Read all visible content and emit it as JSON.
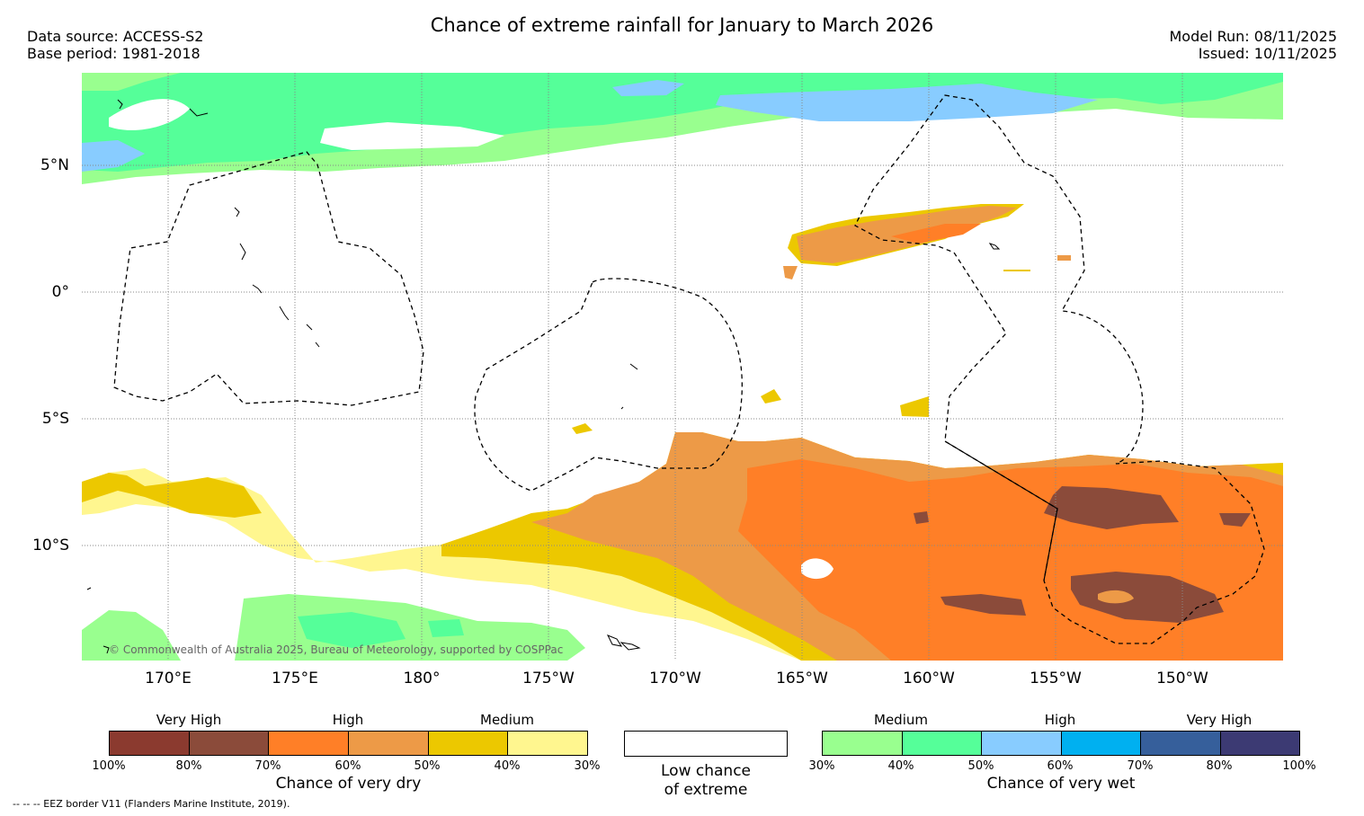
{
  "header": {
    "title": "Chance of extreme rainfall for January to March 2026",
    "data_source": "Data source: ACCESS-S2",
    "base_period": "Base period: 1981-2018",
    "model_run": "Model Run: 08/11/2025",
    "issued": "Issued: 10/11/2025"
  },
  "map": {
    "lat_labels": [
      "5°N",
      "0°",
      "5°S",
      "10°S"
    ],
    "lon_labels": [
      "170°E",
      "175°E",
      "180°",
      "175°W",
      "170°W",
      "165°W",
      "160°W",
      "155°W",
      "150°W"
    ],
    "copyright": "© Commonwealth of Australia 2025, Bureau of Meteorology, supported by COSPPac",
    "colors": {
      "dry_very_high_1": "#8b3a2f",
      "dry_very_high_2": "#8b4b3a",
      "dry_high_1": "#ff7f27",
      "dry_high_2": "#ed9a47",
      "dry_medium_1": "#ecc800",
      "dry_medium_2": "#fff68f",
      "wet_medium_1": "#99ff8f",
      "wet_medium_2": "#55ff99",
      "wet_high_1": "#88ccff",
      "wet_high_2": "#00b0f0",
      "wet_very_high_1": "#365f9b",
      "wet_very_high_2": "#3c3a73"
    }
  },
  "legend": {
    "dry": {
      "groups": [
        "Very High",
        "High",
        "Medium"
      ],
      "ticks": [
        "100%",
        "80%",
        "70%",
        "60%",
        "50%",
        "40%",
        "30%"
      ],
      "colors": [
        "#8b3a2f",
        "#8b4b3a",
        "#ff7f27",
        "#ed9a47",
        "#ecc800",
        "#fff68f"
      ],
      "title": "Chance of very dry"
    },
    "low": {
      "line1": "Low chance",
      "line2": "of extreme"
    },
    "wet": {
      "groups": [
        "Medium",
        "High",
        "Very High"
      ],
      "ticks": [
        "30%",
        "40%",
        "50%",
        "60%",
        "70%",
        "80%",
        "100%"
      ],
      "colors": [
        "#99ff8f",
        "#55ff99",
        "#88ccff",
        "#00b0f0",
        "#365f9b",
        "#3c3a73"
      ],
      "title": "Chance of very wet"
    }
  },
  "footer": {
    "eez_note": "--  --  -- EEZ border V11 (Flanders Marine Institute, 2019)."
  }
}
